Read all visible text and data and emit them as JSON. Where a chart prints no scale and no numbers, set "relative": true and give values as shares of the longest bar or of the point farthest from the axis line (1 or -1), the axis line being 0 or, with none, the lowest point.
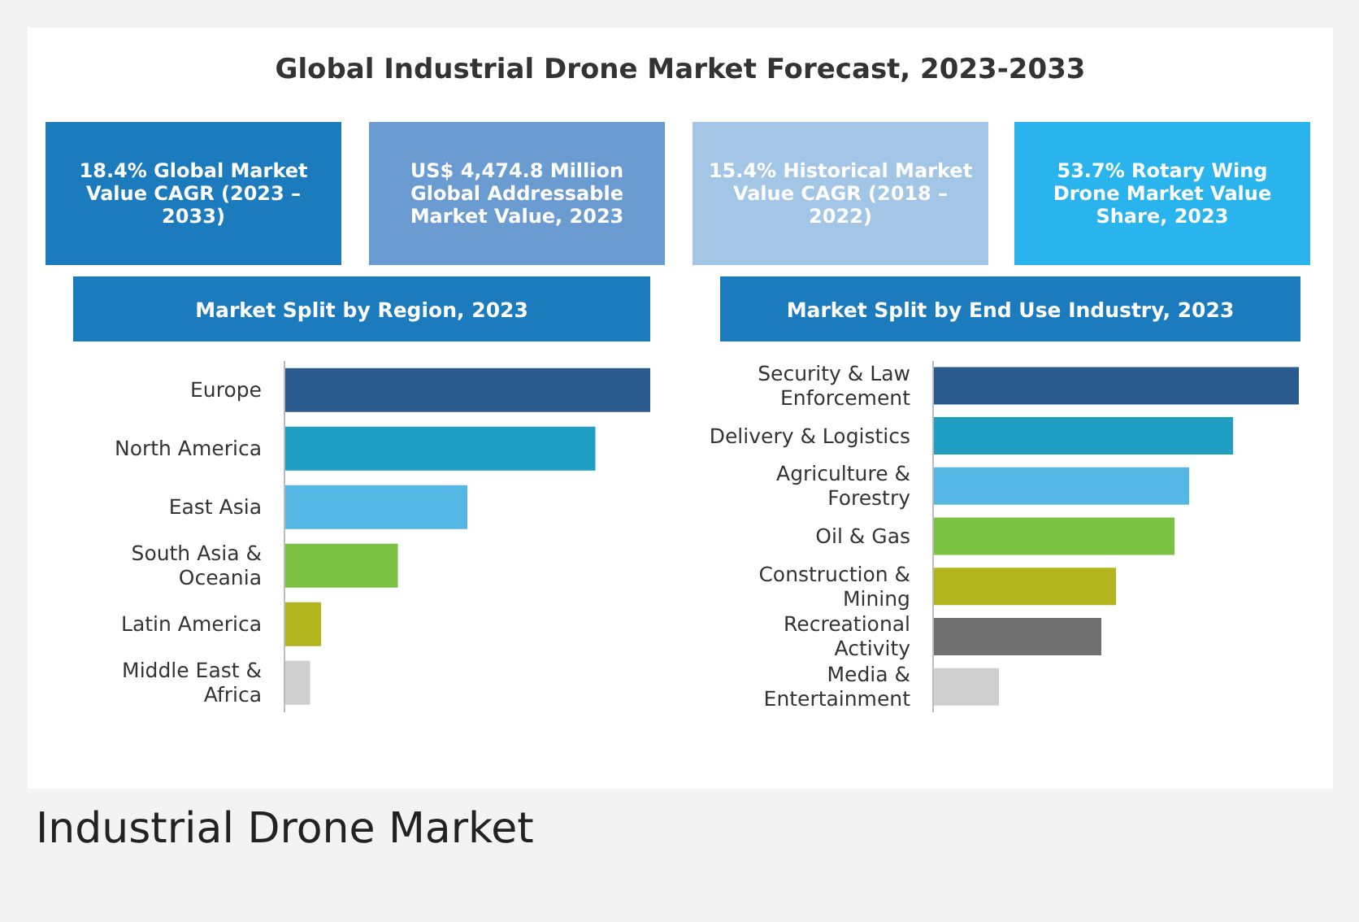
{
  "chart_data": [
    {
      "type": "other",
      "title": "Global Industrial Drone Market Forecast, 2023-2033",
      "annotations": [
        "18.4% Global Market Value CAGR (2023 – 2033)",
        "US$ 4,474.8 Million Global Addressable Market Value, 2023",
        "15.4% Historical Market Value CAGR (2018 – 2022)",
        "53.7% Rotary Wing Drone Market Value Share, 2023",
        "Industrial Drone Market"
      ]
    },
    {
      "type": "bar",
      "orientation": "horizontal",
      "relative": true,
      "title": "Market Split by Region, 2023",
      "categories": [
        "Europe",
        "North America",
        "East Asia",
        "South Asia & Oceania",
        "Latin America",
        "Middle East & Africa"
      ],
      "values": [
        1,
        0.85,
        0.5,
        0.31,
        0.1,
        0.07
      ],
      "colors": [
        "#2a5b8e",
        "#1f9fc4",
        "#55b8e4",
        "#7cc242",
        "#b3b41e",
        "#cfcfcf"
      ]
    },
    {
      "type": "bar",
      "orientation": "horizontal",
      "relative": true,
      "title": "Market Split by End Use Industry, 2023",
      "categories": [
        "Security & Law Enforcement",
        "Delivery & Logistics",
        "Agriculture & Forestry",
        "Oil & Gas",
        "Construction & Mining",
        "Recreational Activity",
        "Media & Entertainment"
      ],
      "values": [
        1,
        0.82,
        0.7,
        0.66,
        0.5,
        0.46,
        0.18
      ],
      "colors": [
        "#2a5b8e",
        "#1f9fc4",
        "#55b8e4",
        "#7cc242",
        "#b3b41e",
        "#707070",
        "#cfcfcf"
      ]
    }
  ]
}
